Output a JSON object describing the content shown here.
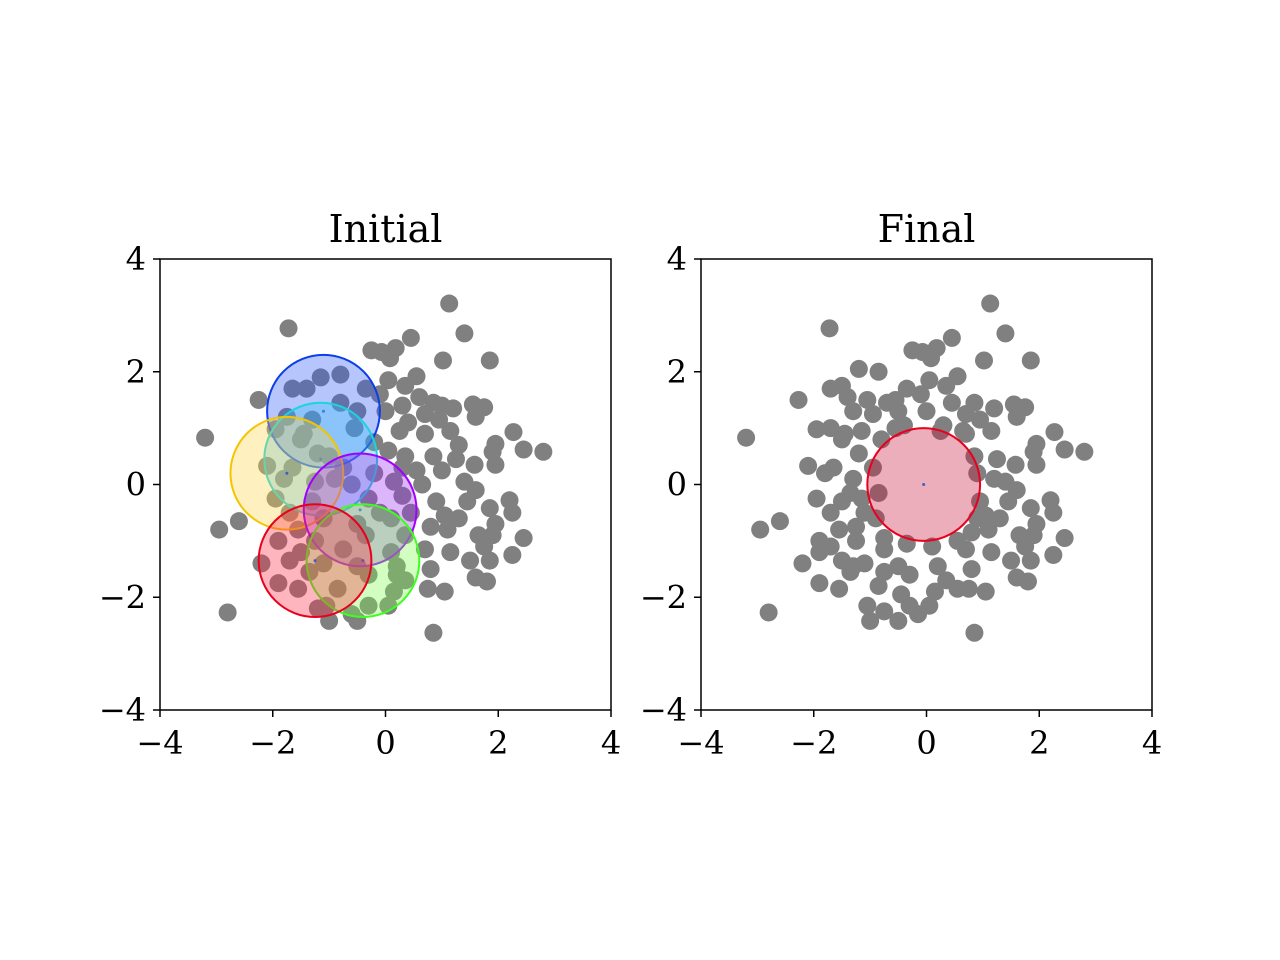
{
  "chart_data": [
    {
      "type": "scatter",
      "title": "Initial",
      "xlim": [
        -4,
        4
      ],
      "ylim": [
        -4,
        4
      ],
      "xticks": [
        "−4",
        "−2",
        "0",
        "2",
        "4"
      ],
      "yticks": [
        "−4",
        "−2",
        "0",
        "2",
        "4"
      ],
      "xtick_values": [
        -4,
        -2,
        0,
        2,
        4
      ],
      "ytick_values": [
        -4,
        -2,
        0,
        2,
        4
      ],
      "grid": false,
      "point_color": "#808080",
      "points": [
        [
          1.13,
          3.21
        ],
        [
          -1.72,
          2.77
        ],
        [
          1.4,
          2.68
        ],
        [
          0.45,
          2.6
        ],
        [
          -0.25,
          2.38
        ],
        [
          -0.07,
          2.35
        ],
        [
          0.18,
          2.42
        ],
        [
          0.08,
          2.24
        ],
        [
          1.02,
          2.2
        ],
        [
          1.85,
          2.2
        ],
        [
          -0.8,
          1.95
        ],
        [
          -1.15,
          1.9
        ],
        [
          0.05,
          1.85
        ],
        [
          0.55,
          1.92
        ],
        [
          0.35,
          1.75
        ],
        [
          -0.35,
          1.7
        ],
        [
          -1.4,
          1.7
        ],
        [
          -1.65,
          1.7
        ],
        [
          -2.25,
          1.5
        ],
        [
          -0.1,
          1.6
        ],
        [
          0.85,
          1.45
        ],
        [
          1.2,
          1.35
        ],
        [
          1.55,
          1.42
        ],
        [
          1.75,
          1.37
        ],
        [
          0.7,
          1.25
        ],
        [
          0.95,
          1.15
        ],
        [
          -1.75,
          1.2
        ],
        [
          -1.3,
          1.15
        ],
        [
          0.4,
          1.1
        ],
        [
          1.6,
          1.2
        ],
        [
          -1.95,
          0.98
        ],
        [
          -1.45,
          0.9
        ],
        [
          -0.55,
          1.0
        ],
        [
          0.25,
          0.95
        ],
        [
          0.7,
          0.9
        ],
        [
          1.15,
          0.95
        ],
        [
          2.27,
          0.93
        ],
        [
          1.95,
          0.72
        ],
        [
          2.45,
          0.62
        ],
        [
          2.8,
          0.58
        ],
        [
          -1.5,
          0.8
        ],
        [
          -0.2,
          0.75
        ],
        [
          -3.2,
          0.83
        ],
        [
          -1.2,
          0.55
        ],
        [
          0.05,
          0.6
        ],
        [
          0.35,
          0.5
        ],
        [
          0.85,
          0.5
        ],
        [
          1.25,
          0.45
        ],
        [
          1.9,
          0.58
        ],
        [
          -2.1,
          0.33
        ],
        [
          -1.65,
          0.3
        ],
        [
          -0.75,
          0.3
        ],
        [
          0.55,
          0.25
        ],
        [
          1.0,
          0.25
        ],
        [
          1.58,
          0.35
        ],
        [
          1.95,
          0.35
        ],
        [
          -1.8,
          0.1
        ],
        [
          -1.25,
          0.05
        ],
        [
          -0.6,
          0.0
        ],
        [
          0.15,
          0.05
        ],
        [
          0.65,
          0.0
        ],
        [
          1.4,
          0.05
        ],
        [
          1.6,
          -0.1
        ],
        [
          -1.95,
          -0.25
        ],
        [
          -1.3,
          -0.3
        ],
        [
          -0.3,
          -0.25
        ],
        [
          0.3,
          -0.2
        ],
        [
          0.9,
          -0.3
        ],
        [
          1.45,
          -0.3
        ],
        [
          2.2,
          -0.28
        ],
        [
          1.85,
          -0.42
        ],
        [
          2.25,
          -0.5
        ],
        [
          -1.7,
          -0.5
        ],
        [
          -1.1,
          -0.6
        ],
        [
          -0.1,
          -0.5
        ],
        [
          0.45,
          -0.5
        ],
        [
          1.05,
          -0.55
        ],
        [
          1.3,
          -0.6
        ],
        [
          1.95,
          -0.7
        ],
        [
          -2.6,
          -0.65
        ],
        [
          -2.95,
          -0.8
        ],
        [
          -1.55,
          -0.8
        ],
        [
          -1.25,
          -1.0
        ],
        [
          -0.35,
          -0.9
        ],
        [
          0.35,
          -0.9
        ],
        [
          1.1,
          -0.8
        ],
        [
          1.65,
          -0.9
        ],
        [
          1.9,
          -0.9
        ],
        [
          2.45,
          -0.95
        ],
        [
          -1.9,
          -1.0
        ],
        [
          -1.5,
          -1.2
        ],
        [
          -0.75,
          -1.15
        ],
        [
          0.1,
          -1.2
        ],
        [
          0.7,
          -1.15
        ],
        [
          1.15,
          -1.2
        ],
        [
          1.75,
          -1.1
        ],
        [
          2.25,
          -1.25
        ],
        [
          -2.2,
          -1.4
        ],
        [
          -1.7,
          -1.35
        ],
        [
          -1.1,
          -1.4
        ],
        [
          -0.5,
          -1.45
        ],
        [
          0.2,
          -1.45
        ],
        [
          0.8,
          -1.5
        ],
        [
          1.5,
          -1.35
        ],
        [
          1.85,
          -1.35
        ],
        [
          -1.35,
          -1.55
        ],
        [
          -0.3,
          -1.6
        ],
        [
          0.35,
          -1.7
        ],
        [
          1.6,
          -1.65
        ],
        [
          1.8,
          -1.72
        ],
        [
          -1.9,
          -1.75
        ],
        [
          -1.55,
          -1.85
        ],
        [
          -0.85,
          -1.85
        ],
        [
          0.15,
          -1.9
        ],
        [
          0.75,
          -1.85
        ],
        [
          1.05,
          -1.9
        ],
        [
          -1.05,
          -2.15
        ],
        [
          -0.3,
          -2.15
        ],
        [
          0.05,
          -2.15
        ],
        [
          -2.8,
          -2.27
        ],
        [
          -1.0,
          -2.42
        ],
        [
          -0.5,
          -2.42
        ],
        [
          0.85,
          -2.63
        ],
        [
          -1.2,
          -2.2
        ],
        [
          -0.6,
          -2.3
        ],
        [
          0.2,
          -1.6
        ],
        [
          -0.9,
          0.1
        ],
        [
          0.6,
          1.55
        ],
        [
          -0.5,
          1.3
        ],
        [
          0.0,
          1.3
        ],
        [
          -0.8,
          1.45
        ],
        [
          0.3,
          1.4
        ],
        [
          1.0,
          1.4
        ],
        [
          -0.2,
          0.2
        ],
        [
          0.3,
          0.3
        ],
        [
          0.1,
          -0.6
        ],
        [
          0.8,
          -0.75
        ],
        [
          -0.5,
          -0.7
        ],
        [
          1.3,
          0.7
        ],
        [
          -1.0,
          0.5
        ]
      ],
      "circles": [
        {
          "cx": -1.1,
          "cy": 1.3,
          "r": 1.0,
          "fill": "#2f5df5",
          "stroke": "#0b3fe8",
          "label": "blue"
        },
        {
          "cx": -1.15,
          "cy": 0.45,
          "r": 1.0,
          "fill": "#39c0f5",
          "stroke": "#1ad4e0",
          "label": "cyan"
        },
        {
          "cx": -1.75,
          "cy": 0.2,
          "r": 1.0,
          "fill": "#ffd54a",
          "stroke": "#f5c400",
          "label": "yellow"
        },
        {
          "cx": -0.45,
          "cy": -0.45,
          "r": 1.0,
          "fill": "#9b2cf0",
          "stroke": "#a100ff",
          "label": "purple"
        },
        {
          "cx": -0.4,
          "cy": -1.35,
          "r": 1.0,
          "fill": "#7dff4d",
          "stroke": "#3cff1f",
          "label": "green"
        },
        {
          "cx": -1.25,
          "cy": -1.35,
          "r": 1.0,
          "fill": "#ff2b45",
          "stroke": "#e8001e",
          "label": "red"
        }
      ]
    },
    {
      "type": "scatter",
      "title": "Final",
      "xlim": [
        -4,
        4
      ],
      "ylim": [
        -4,
        4
      ],
      "xticks": [
        "−4",
        "−2",
        "0",
        "2",
        "4"
      ],
      "yticks": [
        "−4",
        "−2",
        "0",
        "2",
        "4"
      ],
      "xtick_values": [
        -4,
        -2,
        0,
        2,
        4
      ],
      "ytick_values": [
        -4,
        -2,
        0,
        2,
        4
      ],
      "grid": false,
      "point_color": "#808080",
      "points": [
        [
          1.13,
          3.21
        ],
        [
          -1.72,
          2.77
        ],
        [
          1.4,
          2.68
        ],
        [
          0.45,
          2.6
        ],
        [
          -0.25,
          2.38
        ],
        [
          -0.07,
          2.35
        ],
        [
          0.18,
          2.42
        ],
        [
          0.08,
          2.24
        ],
        [
          1.02,
          2.2
        ],
        [
          1.85,
          2.2
        ],
        [
          -1.2,
          2.05
        ],
        [
          -0.85,
          2.0
        ],
        [
          -1.5,
          1.75
        ],
        [
          -1.7,
          1.7
        ],
        [
          -0.35,
          1.7
        ],
        [
          -0.1,
          1.6
        ],
        [
          0.05,
          1.85
        ],
        [
          0.55,
          1.92
        ],
        [
          0.35,
          1.75
        ],
        [
          -2.27,
          1.5
        ],
        [
          -1.4,
          1.55
        ],
        [
          -1.05,
          1.5
        ],
        [
          -0.7,
          1.45
        ],
        [
          0.85,
          1.45
        ],
        [
          1.2,
          1.35
        ],
        [
          1.55,
          1.42
        ],
        [
          1.75,
          1.37
        ],
        [
          -1.3,
          1.3
        ],
        [
          -0.95,
          1.25
        ],
        [
          -0.5,
          1.3
        ],
        [
          0.0,
          1.3
        ],
        [
          0.7,
          1.25
        ],
        [
          0.95,
          1.15
        ],
        [
          1.6,
          1.2
        ],
        [
          -1.95,
          0.98
        ],
        [
          -1.7,
          1.0
        ],
        [
          -1.45,
          0.9
        ],
        [
          -1.15,
          0.95
        ],
        [
          -0.55,
          1.0
        ],
        [
          0.25,
          0.95
        ],
        [
          0.7,
          0.9
        ],
        [
          1.15,
          0.95
        ],
        [
          2.27,
          0.93
        ],
        [
          1.95,
          0.72
        ],
        [
          2.45,
          0.62
        ],
        [
          2.8,
          0.58
        ],
        [
          -3.2,
          0.83
        ],
        [
          -1.5,
          0.8
        ],
        [
          -1.2,
          0.55
        ],
        [
          0.85,
          0.5
        ],
        [
          1.25,
          0.45
        ],
        [
          1.9,
          0.58
        ],
        [
          -2.1,
          0.33
        ],
        [
          -1.8,
          0.2
        ],
        [
          -1.65,
          0.3
        ],
        [
          -1.3,
          0.1
        ],
        [
          1.4,
          0.05
        ],
        [
          1.6,
          -0.1
        ],
        [
          1.58,
          0.35
        ],
        [
          1.95,
          0.35
        ],
        [
          -1.95,
          -0.25
        ],
        [
          -1.5,
          -0.3
        ],
        [
          -1.35,
          -0.15
        ],
        [
          -1.1,
          -0.5
        ],
        [
          1.05,
          -0.55
        ],
        [
          1.3,
          -0.6
        ],
        [
          1.45,
          -0.3
        ],
        [
          1.85,
          -0.42
        ],
        [
          2.2,
          -0.28
        ],
        [
          2.25,
          -0.5
        ],
        [
          -1.7,
          -0.5
        ],
        [
          -1.25,
          -0.75
        ],
        [
          1.95,
          -0.7
        ],
        [
          -2.6,
          -0.65
        ],
        [
          -2.95,
          -0.8
        ],
        [
          -1.55,
          -0.8
        ],
        [
          -1.9,
          -1.0
        ],
        [
          -1.7,
          -1.1
        ],
        [
          -1.25,
          -1.0
        ],
        [
          -0.75,
          -1.15
        ],
        [
          0.7,
          -1.15
        ],
        [
          1.1,
          -0.8
        ],
        [
          1.15,
          -1.2
        ],
        [
          1.65,
          -0.9
        ],
        [
          1.9,
          -0.9
        ],
        [
          2.45,
          -0.95
        ],
        [
          1.75,
          -1.1
        ],
        [
          2.25,
          -1.25
        ],
        [
          -2.2,
          -1.4
        ],
        [
          -1.9,
          -1.2
        ],
        [
          -1.5,
          -1.35
        ],
        [
          -1.3,
          -1.45
        ],
        [
          -1.1,
          -1.4
        ],
        [
          -0.5,
          -1.45
        ],
        [
          0.2,
          -1.45
        ],
        [
          0.8,
          -1.5
        ],
        [
          1.5,
          -1.35
        ],
        [
          1.85,
          -1.35
        ],
        [
          -1.35,
          -1.55
        ],
        [
          -0.75,
          -1.55
        ],
        [
          -0.3,
          -1.6
        ],
        [
          0.35,
          -1.7
        ],
        [
          1.6,
          -1.65
        ],
        [
          1.8,
          -1.72
        ],
        [
          -1.9,
          -1.75
        ],
        [
          -1.55,
          -1.85
        ],
        [
          -0.85,
          -1.8
        ],
        [
          -0.45,
          -1.95
        ],
        [
          0.15,
          -1.9
        ],
        [
          0.55,
          -1.85
        ],
        [
          0.75,
          -1.85
        ],
        [
          1.05,
          -1.9
        ],
        [
          -1.05,
          -2.15
        ],
        [
          -0.75,
          -2.25
        ],
        [
          -0.3,
          -2.15
        ],
        [
          0.05,
          -2.15
        ],
        [
          -0.15,
          -2.3
        ],
        [
          -2.8,
          -2.27
        ],
        [
          -1.0,
          -2.42
        ],
        [
          -0.5,
          -2.42
        ],
        [
          0.85,
          -2.63
        ],
        [
          -0.9,
          -0.6
        ],
        [
          -0.95,
          0.3
        ],
        [
          -0.85,
          -0.15
        ],
        [
          0.9,
          0.2
        ],
        [
          0.95,
          -0.3
        ],
        [
          0.65,
          0.95
        ],
        [
          0.3,
          1.05
        ],
        [
          -0.4,
          1.05
        ],
        [
          0.55,
          -1.0
        ],
        [
          -0.35,
          -1.05
        ],
        [
          0.1,
          -1.1
        ],
        [
          -0.8,
          0.8
        ],
        [
          0.8,
          -0.85
        ],
        [
          -0.75,
          -0.95
        ],
        [
          0.9,
          -0.6
        ],
        [
          1.2,
          0.1
        ],
        [
          -1.15,
          -0.25
        ],
        [
          -0.55,
          1.5
        ],
        [
          0.45,
          1.45
        ]
      ],
      "circles": [
        {
          "cx": -0.05,
          "cy": 0.0,
          "r": 1.0,
          "fill": "#c5183a",
          "stroke": "#e8001e",
          "label": "red"
        }
      ]
    }
  ]
}
